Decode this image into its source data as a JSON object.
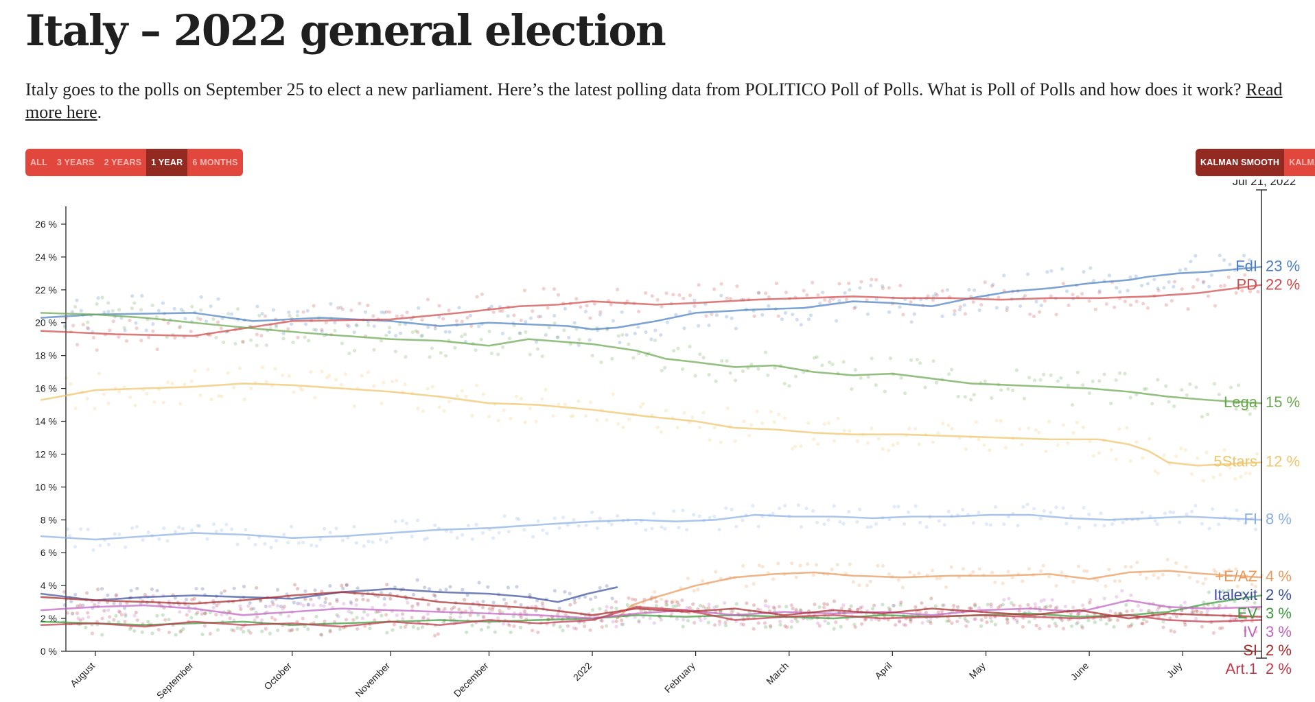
{
  "page": {
    "title": "Italy – 2022 general election",
    "intro_text": "Italy goes to the polls on September 25 to elect a new parliament. Here’s the latest polling data from POLITICO Poll of Polls. What is Poll of Polls and how does it work? ",
    "intro_link": "Read more here",
    "intro_end": "."
  },
  "controls": {
    "range_options": [
      "ALL",
      "3 YEARS",
      "2 YEARS",
      "1 YEAR",
      "6 MONTHS"
    ],
    "range_selected": "1 YEAR",
    "mode_options": [
      "KALMAN SMOOTH",
      "KALMAN"
    ],
    "mode_selected": "KALMAN SMOOTH"
  },
  "colors": {
    "brand_red": "#e2473d",
    "brand_red_dark": "#922a22"
  },
  "chart_data": {
    "type": "line",
    "title": "Italy – 2022 general election",
    "xlabel": "",
    "ylabel": "",
    "ylim": [
      0,
      27
    ],
    "y_ticks": [
      0,
      2,
      4,
      6,
      8,
      10,
      12,
      14,
      16,
      18,
      20,
      22,
      24,
      26
    ],
    "y_tick_format": "{v} %",
    "x_range": [
      0,
      12.15
    ],
    "x_ticks": [
      {
        "label": "August",
        "x": 0.3
      },
      {
        "label": "September",
        "x": 1.3
      },
      {
        "label": "October",
        "x": 2.3
      },
      {
        "label": "November",
        "x": 3.3
      },
      {
        "label": "December",
        "x": 4.3
      },
      {
        "label": "2022",
        "x": 5.35
      },
      {
        "label": "February",
        "x": 6.4
      },
      {
        "label": "March",
        "x": 7.35
      },
      {
        "label": "April",
        "x": 8.4
      },
      {
        "label": "May",
        "x": 9.35
      },
      {
        "label": "June",
        "x": 10.4
      },
      {
        "label": "July",
        "x": 11.35
      }
    ],
    "cursor_x": 12.15,
    "cursor_label": "Jul 21, 2022",
    "legend": "end-of-line labels at right",
    "series": [
      {
        "name": "FdI",
        "label": "FdI",
        "value_label": "23 %",
        "color": "#4a7fc1",
        "x": [
          -0.3,
          0.3,
          1.3,
          1.9,
          2.6,
          3.3,
          3.8,
          4.3,
          4.7,
          5.1,
          5.35,
          5.6,
          6.0,
          6.4,
          7.0,
          7.5,
          8.0,
          8.4,
          8.8,
          9.2,
          9.6,
          10.0,
          10.4,
          10.8,
          11.0,
          11.3,
          11.6,
          12.15
        ],
        "values": [
          20.3,
          20.5,
          20.6,
          20.1,
          20.3,
          20.1,
          19.8,
          20.0,
          19.9,
          19.8,
          19.6,
          19.7,
          20.1,
          20.6,
          20.8,
          20.9,
          21.3,
          21.2,
          21.0,
          21.5,
          21.9,
          22.1,
          22.4,
          22.6,
          22.8,
          23.0,
          23.1,
          23.4
        ]
      },
      {
        "name": "PD",
        "label": "PD",
        "value_label": "22 %",
        "color": "#d04a4a",
        "x": [
          -0.3,
          0.5,
          1.3,
          2.3,
          3.3,
          4.0,
          4.6,
          5.0,
          5.35,
          6.0,
          6.4,
          7.0,
          7.5,
          8.0,
          8.5,
          9.0,
          9.5,
          10.0,
          10.5,
          11.0,
          11.5,
          12.15
        ],
        "values": [
          19.5,
          19.3,
          19.2,
          20.1,
          20.2,
          20.6,
          21.0,
          21.1,
          21.3,
          21.1,
          21.2,
          21.4,
          21.5,
          21.6,
          21.5,
          21.5,
          21.4,
          21.5,
          21.5,
          21.6,
          21.8,
          22.3
        ]
      },
      {
        "name": "Lega",
        "label": "Lega",
        "value_label": "15 %",
        "color": "#6aa84f",
        "x": [
          -0.3,
          0.3,
          0.8,
          1.3,
          2.0,
          2.6,
          3.3,
          3.8,
          4.3,
          4.7,
          5.35,
          5.8,
          6.1,
          6.4,
          6.8,
          7.2,
          7.6,
          8.0,
          8.4,
          8.8,
          9.2,
          9.6,
          10.0,
          10.4,
          10.8,
          11.2,
          11.6,
          12.15
        ],
        "values": [
          20.6,
          20.5,
          20.3,
          20.0,
          19.6,
          19.3,
          19.0,
          18.9,
          18.6,
          19.0,
          18.7,
          18.3,
          17.8,
          17.6,
          17.3,
          17.4,
          17.0,
          16.8,
          16.9,
          16.6,
          16.3,
          16.2,
          16.1,
          16.0,
          15.8,
          15.5,
          15.3,
          15.1
        ]
      },
      {
        "name": "5Stars",
        "label": "5Stars",
        "value_label": "12 %",
        "color": "#efc46a",
        "x": [
          -0.3,
          0.3,
          0.8,
          1.3,
          1.8,
          2.3,
          2.8,
          3.3,
          3.8,
          4.3,
          4.8,
          5.35,
          5.9,
          6.4,
          6.8,
          7.2,
          7.6,
          8.0,
          8.5,
          9.0,
          9.5,
          10.0,
          10.5,
          10.8,
          11.0,
          11.2,
          11.5,
          12.15
        ],
        "values": [
          15.3,
          15.9,
          16.0,
          16.1,
          16.3,
          16.2,
          16.0,
          15.8,
          15.5,
          15.1,
          15.0,
          14.7,
          14.3,
          14.0,
          13.6,
          13.5,
          13.3,
          13.2,
          13.2,
          13.1,
          13.0,
          12.9,
          12.9,
          12.6,
          12.2,
          11.5,
          11.3,
          11.5
        ]
      },
      {
        "name": "FI",
        "label": "FI",
        "value_label": "8 %",
        "color": "#8aaee3",
        "x": [
          -0.3,
          0.3,
          0.8,
          1.3,
          1.8,
          2.3,
          2.8,
          3.3,
          3.8,
          4.3,
          4.8,
          5.35,
          5.8,
          6.2,
          6.6,
          7.0,
          7.4,
          7.8,
          8.2,
          8.6,
          9.0,
          9.4,
          9.8,
          10.2,
          10.6,
          11.0,
          11.4,
          12.15
        ],
        "values": [
          7.0,
          6.8,
          7.0,
          7.2,
          7.1,
          6.9,
          7.0,
          7.2,
          7.4,
          7.5,
          7.7,
          7.9,
          8.0,
          7.9,
          8.0,
          8.3,
          8.2,
          8.2,
          8.1,
          8.2,
          8.2,
          8.3,
          8.3,
          8.1,
          8.0,
          8.1,
          8.2,
          8.0
        ]
      },
      {
        "name": "+E/AZ",
        "label": "+E/AZ",
        "value_label": "4 %",
        "color": "#e8995a",
        "x": [
          5.6,
          5.75,
          6.0,
          6.4,
          6.8,
          7.2,
          7.6,
          8.0,
          8.5,
          9.0,
          9.5,
          10.0,
          10.4,
          10.8,
          11.2,
          11.6,
          12.15
        ],
        "values": [
          2.0,
          2.8,
          3.3,
          4.0,
          4.5,
          4.7,
          4.8,
          4.6,
          4.5,
          4.6,
          4.6,
          4.7,
          4.4,
          4.8,
          4.9,
          4.7,
          4.5
        ]
      },
      {
        "name": "EV",
        "label": "EV",
        "value_label": "3 %",
        "color": "#3a9a3a",
        "x": [
          -0.3,
          0.3,
          0.8,
          1.3,
          1.8,
          2.3,
          2.8,
          3.3,
          3.8,
          4.3,
          4.8,
          5.35,
          5.8,
          6.3,
          6.8,
          7.3,
          7.8,
          8.3,
          8.8,
          9.3,
          9.8,
          10.3,
          10.8,
          11.2,
          11.6,
          12.15
        ],
        "values": [
          1.8,
          1.7,
          1.6,
          1.7,
          1.8,
          1.6,
          1.7,
          1.8,
          1.9,
          1.8,
          1.9,
          2.0,
          2.2,
          2.1,
          2.2,
          2.1,
          2.0,
          2.2,
          2.1,
          2.2,
          2.3,
          2.1,
          2.2,
          2.4,
          2.9,
          3.4
        ]
      },
      {
        "name": "IV",
        "label": "IV",
        "value_label": "3 %",
        "color": "#c062c0",
        "x": [
          -0.3,
          0.3,
          0.8,
          1.3,
          1.8,
          2.3,
          2.8,
          3.3,
          3.8,
          4.3,
          4.8,
          5.35,
          5.8,
          6.3,
          6.8,
          7.3,
          7.8,
          8.3,
          8.8,
          9.3,
          9.8,
          10.3,
          10.8,
          11.2,
          11.6,
          12.15
        ],
        "values": [
          2.5,
          2.7,
          2.8,
          2.6,
          2.2,
          2.4,
          2.6,
          2.5,
          2.4,
          2.3,
          2.2,
          2.0,
          2.3,
          2.5,
          2.2,
          2.4,
          2.3,
          2.4,
          2.2,
          2.5,
          2.6,
          2.4,
          3.1,
          2.7,
          2.6,
          2.7
        ]
      },
      {
        "name": "Italexit",
        "label": "Italexit",
        "value_label": "2 %",
        "color": "#3a4f9a",
        "x": [
          -0.3,
          0.3,
          0.8,
          1.3,
          1.8,
          2.3,
          2.8,
          3.3,
          3.8,
          4.3,
          4.7,
          5.0,
          5.3,
          5.6
        ],
        "values": [
          3.5,
          3.1,
          3.3,
          3.4,
          3.3,
          3.2,
          3.6,
          3.8,
          3.6,
          3.5,
          3.3,
          3.0,
          3.5,
          3.9
        ]
      },
      {
        "name": "SI",
        "label": "SI",
        "value_label": "2 %",
        "color": "#a82828",
        "x": [
          -0.3,
          0.3,
          0.8,
          1.3,
          1.8,
          2.3,
          2.8,
          3.3,
          3.8,
          4.3,
          4.8,
          5.35,
          5.8,
          6.3,
          6.8,
          7.3,
          7.8,
          8.3,
          8.8,
          9.3,
          9.8,
          10.3,
          10.8,
          11.2,
          11.6,
          12.15
        ],
        "values": [
          3.3,
          3.1,
          3.0,
          2.9,
          3.1,
          3.4,
          3.6,
          3.4,
          3.0,
          2.8,
          2.6,
          2.2,
          2.6,
          2.4,
          2.6,
          2.2,
          2.5,
          2.3,
          2.6,
          2.4,
          2.2,
          2.5,
          2.0,
          2.3,
          2.2,
          2.1
        ]
      },
      {
        "name": "Art.1",
        "label": "Art.1",
        "value_label": "2 %",
        "color": "#c0384a",
        "x": [
          -0.3,
          0.3,
          0.8,
          1.3,
          1.8,
          2.3,
          2.8,
          3.3,
          3.8,
          4.3,
          4.8,
          5.35,
          5.8,
          6.3,
          6.8,
          7.3,
          7.8,
          8.3,
          8.8,
          9.3,
          9.8,
          10.3,
          10.8,
          11.2,
          11.6,
          12.15
        ],
        "values": [
          1.6,
          1.7,
          1.5,
          1.8,
          1.6,
          1.7,
          1.5,
          1.8,
          1.6,
          1.9,
          1.7,
          1.9,
          2.7,
          2.5,
          1.9,
          2.1,
          2.2,
          2.0,
          2.1,
          2.2,
          2.1,
          2.0,
          2.2,
          1.9,
          1.8,
          1.9
        ]
      }
    ]
  }
}
